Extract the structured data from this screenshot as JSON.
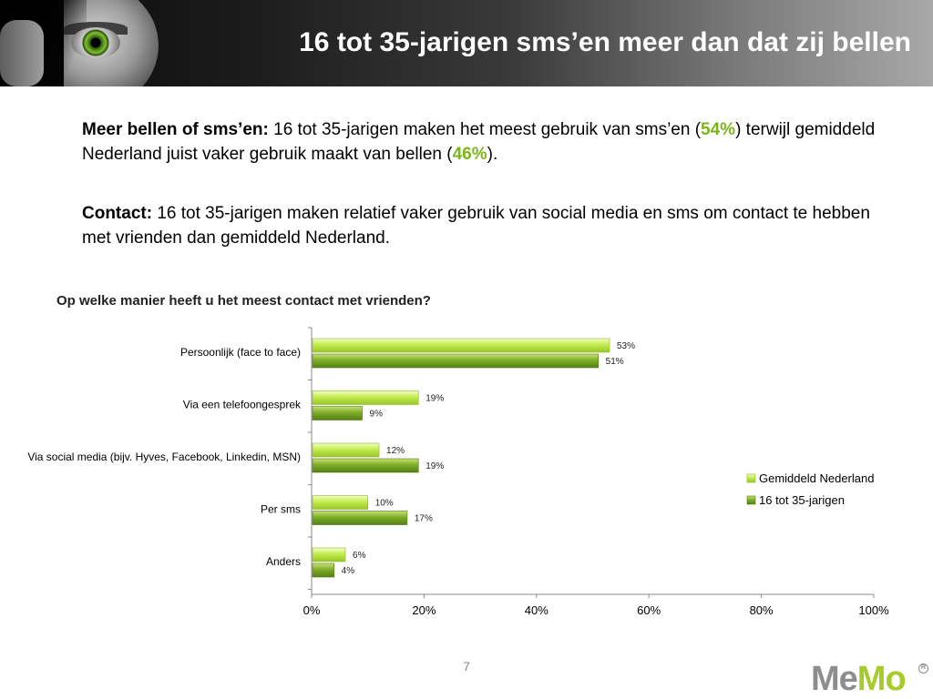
{
  "header": {
    "title": "16 tot 35-jarigen sms’en meer dan dat zij bellen"
  },
  "paragraphs": {
    "p1": {
      "lead": "Meer bellen of sms’en:",
      "text_a": " 16 tot 35-jarigen maken het meest gebruik van sms’en (",
      "hl_a": "54%",
      "text_b": ") terwijl gemiddeld Nederland juist vaker gebruik maakt van bellen (",
      "hl_b": "46%",
      "text_c": ")."
    },
    "p2": {
      "lead": "Contact:",
      "text": " 16 tot 35-jarigen maken relatief vaker gebruik van social media en sms om contact te hebben met vrienden dan gemiddeld Nederland."
    }
  },
  "chart_data": {
    "type": "bar",
    "orientation": "horizontal",
    "title": "Op welke manier heeft u het meest contact met vrienden?",
    "categories": [
      "Persoonlijk (face to face)",
      "Via een telefoongesprek",
      "Via social media (bijv. Hyves, Facebook, Linkedin, MSN)",
      "Per sms",
      "Anders"
    ],
    "series": [
      {
        "name": "Gemiddeld Nederland",
        "values": [
          53,
          19,
          12,
          10,
          6
        ],
        "color": "#b4e03c"
      },
      {
        "name": "16 tot 35-jarigen",
        "values": [
          51,
          9,
          19,
          17,
          4
        ],
        "color": "#6f9e1e"
      }
    ],
    "value_suffix": "%",
    "xlim": [
      0,
      100
    ],
    "xticks": [
      "0%",
      "20%",
      "40%",
      "60%",
      "80%",
      "100%"
    ],
    "gridlines": false,
    "legend": "right"
  },
  "footer": {
    "page_number": "7",
    "logo_me": "Me",
    "logo_mo": "Mo",
    "logo_mark": "R"
  },
  "colors": {
    "accent_green": "#7cb41c",
    "series_light": "#b4e03c",
    "series_dark": "#6f9e1e"
  }
}
